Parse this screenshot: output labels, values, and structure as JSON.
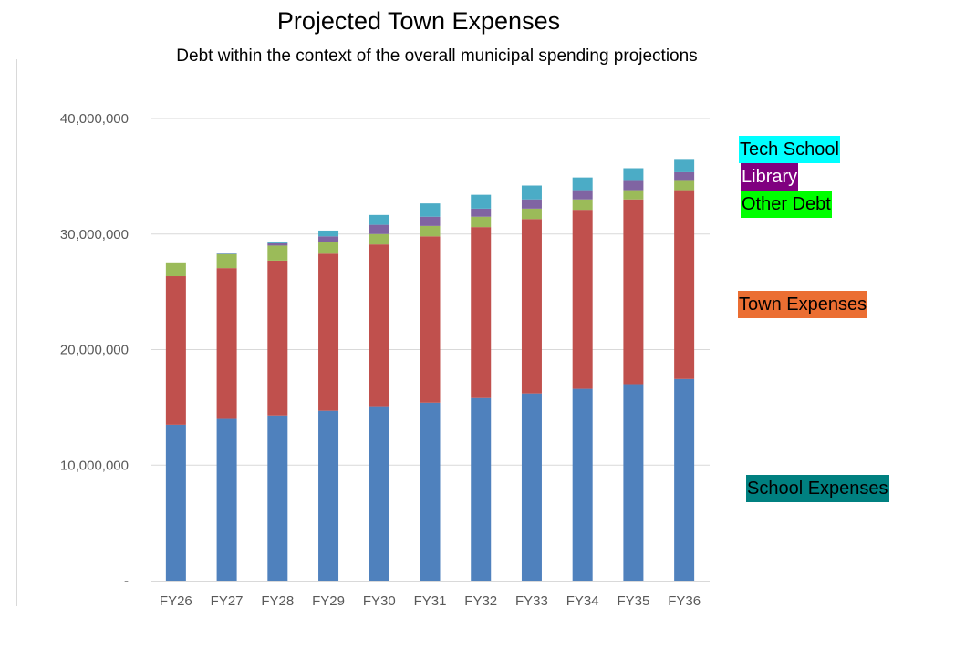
{
  "chart_data": {
    "type": "bar",
    "stacked": true,
    "title": "Projected Town Expenses",
    "subtitle": "Debt within the context of the overall municipal spending projections",
    "xlabel": "",
    "ylabel": "",
    "ylim": [
      0,
      40000000
    ],
    "yticks": [
      0,
      10000000,
      20000000,
      30000000,
      40000000
    ],
    "ytick_labels": [
      "-",
      "10,000,000",
      "20,000,000",
      "30,000,000",
      "40,000,000"
    ],
    "grid": true,
    "categories": [
      "FY26",
      "FY27",
      "FY28",
      "FY29",
      "FY30",
      "FY31",
      "FY32",
      "FY33",
      "FY34",
      "FY35",
      "FY36"
    ],
    "series": [
      {
        "name": "School Expenses",
        "color": "#4f81bd",
        "values": [
          13500000,
          14000000,
          14300000,
          14700000,
          15100000,
          15400000,
          15800000,
          16200000,
          16600000,
          17000000,
          17450000
        ]
      },
      {
        "name": "Town Expenses",
        "color": "#c0504d",
        "values": [
          12850000,
          13050000,
          13400000,
          13600000,
          14000000,
          14400000,
          14800000,
          15100000,
          15500000,
          16000000,
          16350000
        ]
      },
      {
        "name": "Other Debt",
        "color": "#9bbb59",
        "values": [
          1200000,
          1200000,
          1300000,
          1000000,
          900000,
          900000,
          900000,
          900000,
          900000,
          800000,
          800000
        ]
      },
      {
        "name": "Library",
        "color": "#8064a2",
        "values": [
          0,
          30000,
          200000,
          500000,
          800000,
          800000,
          700000,
          800000,
          800000,
          800000,
          750000
        ]
      },
      {
        "name": "Tech School",
        "color": "#4bacc6",
        "values": [
          0,
          30000,
          150000,
          500000,
          850000,
          1150000,
          1200000,
          1200000,
          1100000,
          1100000,
          1150000
        ]
      }
    ],
    "legend": [
      {
        "label": "Tech School",
        "bg": "#00ffff",
        "fg": "#000000"
      },
      {
        "label": "Library",
        "bg": "#800080",
        "fg": "#ffffff"
      },
      {
        "label": "Other Debt",
        "bg": "#00ff00",
        "fg": "#000000"
      },
      {
        "label": "Town Expenses",
        "bg": "#eb6e32",
        "fg": "#000000"
      },
      {
        "label": "School Expenses",
        "bg": "#008080",
        "fg": "#000000"
      }
    ]
  }
}
